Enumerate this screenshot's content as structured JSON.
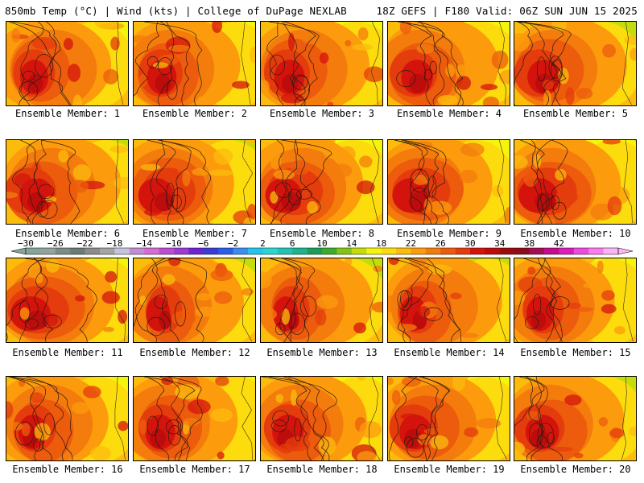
{
  "header": {
    "left": "850mb Temp (°C) | Wind (kts) | College of DuPage NEXLAB",
    "right": "18Z GEFS | F180 Valid: 06Z SUN JUN 15 2025"
  },
  "members": [
    {
      "label": "Ensemble Member: 1"
    },
    {
      "label": "Ensemble Member: 2"
    },
    {
      "label": "Ensemble Member: 3"
    },
    {
      "label": "Ensemble Member: 4"
    },
    {
      "label": "Ensemble Member: 5"
    },
    {
      "label": "Ensemble Member: 6"
    },
    {
      "label": "Ensemble Member: 7"
    },
    {
      "label": "Ensemble Member: 8"
    },
    {
      "label": "Ensemble Member: 9"
    },
    {
      "label": "Ensemble Member: 10"
    },
    {
      "label": "Ensemble Member: 11"
    },
    {
      "label": "Ensemble Member: 12"
    },
    {
      "label": "Ensemble Member: 13"
    },
    {
      "label": "Ensemble Member: 14"
    },
    {
      "label": "Ensemble Member: 15"
    },
    {
      "label": "Ensemble Member: 16"
    },
    {
      "label": "Ensemble Member: 17"
    },
    {
      "label": "Ensemble Member: 18"
    },
    {
      "label": "Ensemble Member: 19"
    },
    {
      "label": "Ensemble Member: 20"
    }
  ],
  "colorbar": {
    "labels": [
      "−30",
      "−26",
      "−22",
      "−18",
      "−14",
      "−10",
      "−6",
      "−2",
      "2",
      "6",
      "10",
      "14",
      "18",
      "22",
      "26",
      "30",
      "34",
      "38",
      "42"
    ],
    "colors": [
      "#84a49c",
      "#94a49c",
      "#7c8c84",
      "#6c7c74",
      "#8c8c8c",
      "#a4a4a4",
      "#c4c4dc",
      "#c48cd4",
      "#d46cd4",
      "#bc4cd4",
      "#9c3cd4",
      "#6c24d4",
      "#3c3cd4",
      "#2c5cec",
      "#3c8cf4",
      "#24c4ec",
      "#2cd4d4",
      "#24c4b4",
      "#1cb48c",
      "#1c9c5c",
      "#3cac2c",
      "#84c414",
      "#c4dc0c",
      "#f4f40c",
      "#fcdc0c",
      "#fcbc0c",
      "#fc9c0c",
      "#f47c0c",
      "#ec5c0c",
      "#e43c0c",
      "#d4140c",
      "#bc0c0c",
      "#9c0c0c",
      "#8c0c1c",
      "#a40c54",
      "#c40c8c",
      "#dc1cbc",
      "#ec4cdc",
      "#fc7cec",
      "#fcb4f4"
    ]
  }
}
